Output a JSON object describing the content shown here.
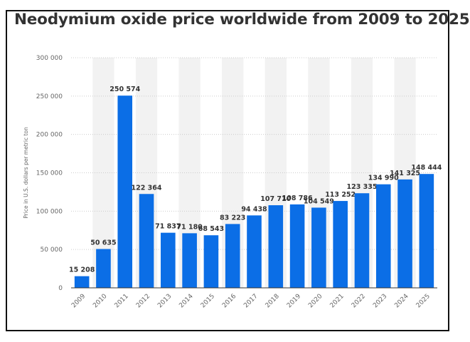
{
  "chart_data": {
    "type": "bar",
    "title": "Neodymium oxide price worldwide from 2009 to 2025",
    "xlabel": "",
    "ylabel": "Price in U.S. dollars per metric ton",
    "categories": [
      "2009",
      "2010",
      "2011",
      "2012",
      "2013",
      "2014",
      "2015",
      "2016",
      "2017",
      "2018",
      "2019",
      "2020",
      "2021",
      "2022",
      "2023",
      "2024",
      "2025"
    ],
    "values": [
      15208,
      50635,
      250574,
      122364,
      71837,
      71180,
      68543,
      83223,
      94438,
      107710,
      108786,
      104549,
      113252,
      123335,
      134990,
      141325,
      148444
    ],
    "value_labels": [
      "15 208",
      "50 635",
      "250 574",
      "122 364",
      "71 837",
      "71 180",
      "68 543",
      "83 223",
      "94 438",
      "107 710",
      "108 786",
      "104 549",
      "113 252",
      "123 335",
      "134 990",
      "141 325",
      "148 444"
    ],
    "yticks": [
      0,
      50000,
      100000,
      150000,
      200000,
      250000,
      300000
    ],
    "ytick_labels": [
      "0",
      "50 000",
      "100 000",
      "150 000",
      "200 000",
      "250 000",
      "300 000"
    ],
    "ylim": [
      0,
      300000
    ],
    "grid": true,
    "legend": "none",
    "colors": {
      "bar": "#0b6ee6",
      "grid": "#cccccc",
      "band": "#f2f2f2",
      "text": "#333333",
      "axis_text": "#666666"
    }
  }
}
